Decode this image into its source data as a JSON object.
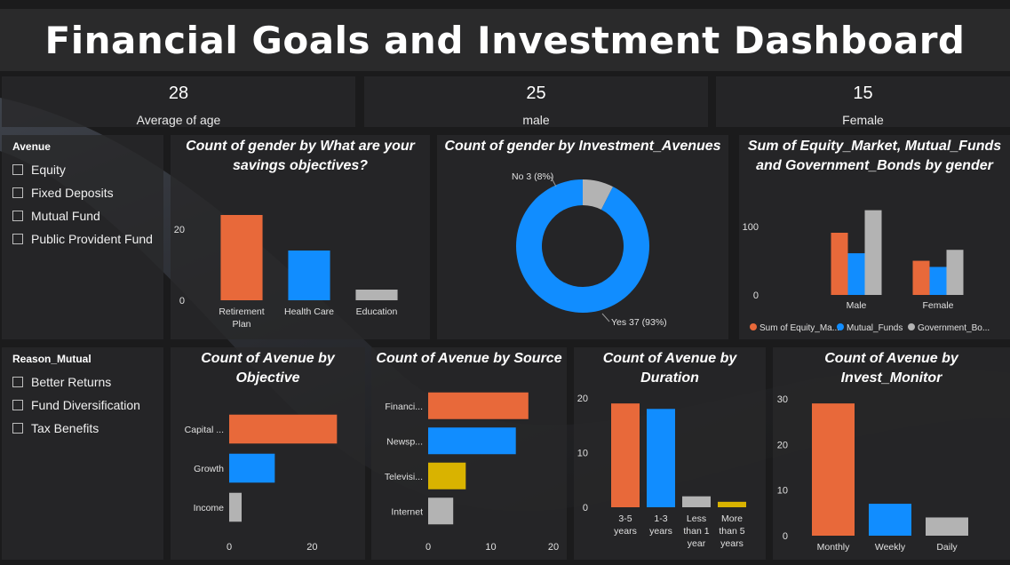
{
  "title": "Financial Goals and Investment Dashboard",
  "kpis": [
    {
      "value": "28",
      "label": "Average of age"
    },
    {
      "value": "25",
      "label": "male"
    },
    {
      "value": "15",
      "label": "Female"
    }
  ],
  "slicer_avenue": {
    "title": "Avenue",
    "items": [
      "Equity",
      "Fixed Deposits",
      "Mutual Fund",
      "Public Provident Fund"
    ]
  },
  "slicer_reason": {
    "title": "Reason_Mutual",
    "items": [
      "Better Returns",
      "Fund Diversification",
      "Tax Benefits"
    ]
  },
  "colors": {
    "orange": "#e8693a",
    "blue": "#118dff",
    "gray": "#b3b3b3",
    "yellow": "#d9b300",
    "background": "#1b1b1c",
    "panel": "#28282a"
  },
  "chart_data": [
    {
      "id": "savings",
      "type": "bar",
      "title": "Count of gender by What are your savings objectives?",
      "categories": [
        [
          "Retirement",
          "Plan"
        ],
        [
          "Health Care"
        ],
        [
          "Education"
        ]
      ],
      "values": [
        24,
        14,
        3
      ],
      "colors": [
        "#e8693a",
        "#118dff",
        "#b3b3b3"
      ],
      "ylim": [
        0,
        30
      ],
      "yticks": [
        0,
        20
      ]
    },
    {
      "id": "avenues",
      "type": "pie",
      "title": "Count of gender by Investment_Avenues",
      "slices": [
        {
          "label": "Yes",
          "value": 37,
          "pct": "93%",
          "text": "Yes 37 (93%)",
          "color": "#118dff"
        },
        {
          "label": "No",
          "value": 3,
          "pct": "8%",
          "text": "No 3 (8%)",
          "color": "#b3b3b3"
        }
      ]
    },
    {
      "id": "sum_gender",
      "type": "bar",
      "title": "Sum of Equity_Market, Mutual_Funds and Government_Bonds by gender",
      "categories": [
        "Male",
        "Female"
      ],
      "series": [
        {
          "name": "Sum of Equity_Ma...",
          "values": [
            91,
            50
          ],
          "color": "#e8693a"
        },
        {
          "name": "Mutual_Funds",
          "values": [
            61,
            41
          ],
          "color": "#118dff"
        },
        {
          "name": "Government_Bo...",
          "values": [
            124,
            66
          ],
          "color": "#b3b3b3"
        }
      ],
      "ylim": [
        0,
        130
      ],
      "yticks": [
        0,
        100
      ],
      "legend": "bottom"
    },
    {
      "id": "objective",
      "type": "bar",
      "orientation": "horizontal",
      "title": "Count of Avenue by Objective",
      "categories": [
        "Capital ...",
        "Growth",
        "Income"
      ],
      "values": [
        26,
        11,
        3
      ],
      "colors": [
        "#e8693a",
        "#118dff",
        "#b3b3b3"
      ],
      "xlim": [
        0,
        30
      ],
      "xticks": [
        0,
        20
      ]
    },
    {
      "id": "source",
      "type": "bar",
      "orientation": "horizontal",
      "title": "Count of Avenue by Source",
      "categories": [
        "Financi...",
        "Newsp...",
        "Televisi...",
        "Internet"
      ],
      "values": [
        16,
        14,
        6,
        4
      ],
      "colors": [
        "#e8693a",
        "#118dff",
        "#d9b300",
        "#b3b3b3"
      ],
      "xlim": [
        0,
        20
      ],
      "xticks": [
        0,
        10,
        20
      ]
    },
    {
      "id": "duration",
      "type": "bar",
      "title": "Count of Avenue by Duration",
      "categories": [
        [
          "3-5",
          "years"
        ],
        [
          "1-3",
          "years"
        ],
        [
          "Less",
          "than 1",
          "year"
        ],
        [
          "More",
          "than 5",
          "years"
        ]
      ],
      "values": [
        19,
        18,
        2,
        1
      ],
      "colors": [
        "#e8693a",
        "#118dff",
        "#b3b3b3",
        "#d9b300"
      ],
      "ylim": [
        0,
        20
      ],
      "yticks": [
        0,
        10,
        20
      ]
    },
    {
      "id": "monitor",
      "type": "bar",
      "title": "Count of Avenue by Invest_Monitor",
      "categories": [
        [
          "Monthly"
        ],
        [
          "Weekly"
        ],
        [
          "Daily"
        ]
      ],
      "values": [
        29,
        7,
        4
      ],
      "colors": [
        "#e8693a",
        "#118dff",
        "#b3b3b3"
      ],
      "ylim": [
        0,
        30
      ],
      "yticks": [
        0,
        10,
        20,
        30
      ]
    }
  ]
}
